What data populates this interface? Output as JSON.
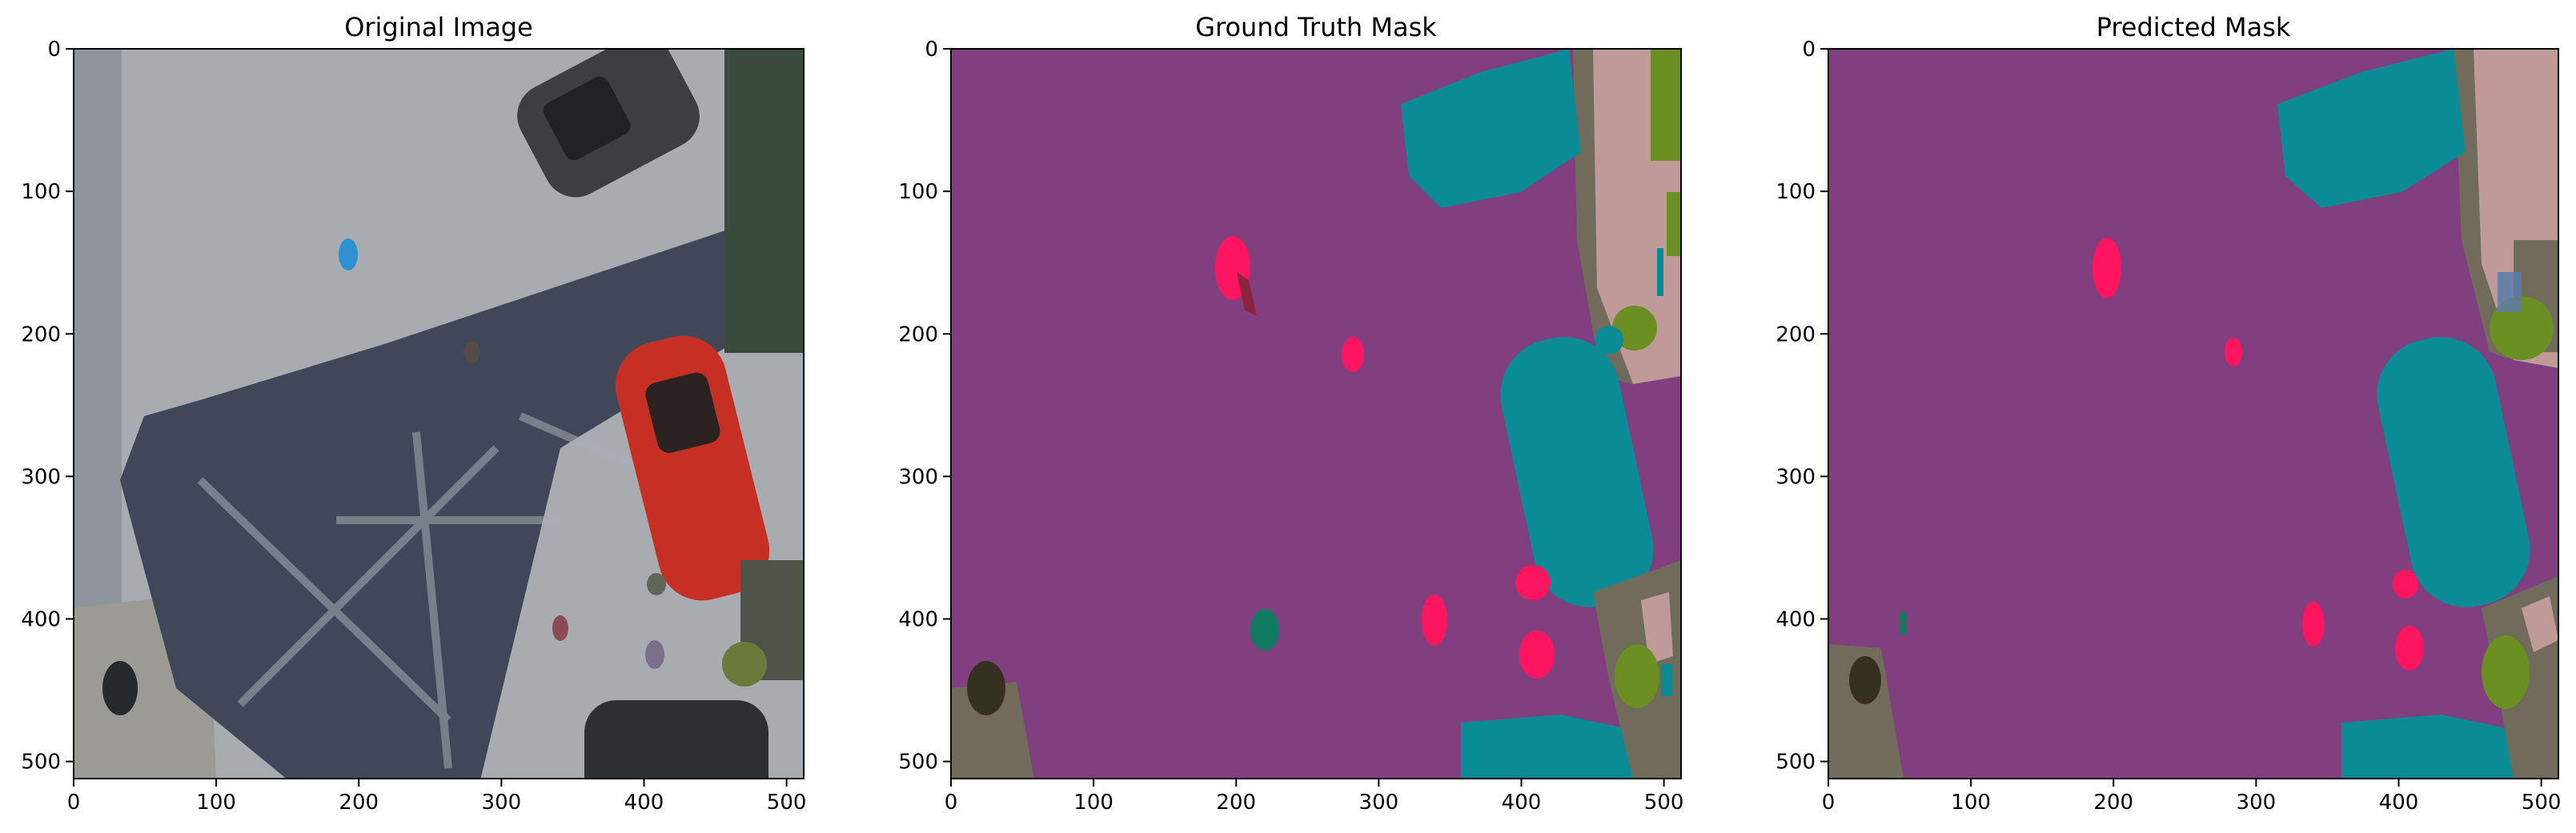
{
  "chart_data": [
    {
      "type": "image",
      "title": "Original Image",
      "xlim": [
        0,
        512
      ],
      "ylim": [
        512,
        0
      ],
      "xticks": [
        0,
        100,
        200,
        300,
        400,
        500
      ],
      "yticks": [
        0,
        100,
        200,
        300,
        400,
        500
      ],
      "xtick_labels": [
        "0",
        "100",
        "200",
        "300",
        "400",
        "500"
      ],
      "ytick_labels": [
        "0",
        "100",
        "200",
        "300",
        "400",
        "500"
      ]
    },
    {
      "type": "image",
      "title": "Ground Truth Mask",
      "xlim": [
        0,
        512
      ],
      "ylim": [
        512,
        0
      ],
      "xticks": [
        0,
        100,
        200,
        300,
        400,
        500
      ],
      "yticks": [
        0,
        100,
        200,
        300,
        400,
        500
      ],
      "xtick_labels": [
        "0",
        "100",
        "200",
        "300",
        "400",
        "500"
      ],
      "ytick_labels": [
        "0",
        "100",
        "200",
        "300",
        "400",
        "500"
      ]
    },
    {
      "type": "image",
      "title": "Predicted Mask",
      "xlim": [
        0,
        512
      ],
      "ylim": [
        512,
        0
      ],
      "xticks": [
        0,
        100,
        200,
        300,
        400,
        500
      ],
      "yticks": [
        0,
        100,
        200,
        300,
        400,
        500
      ],
      "xtick_labels": [
        "0",
        "100",
        "200",
        "300",
        "400",
        "500"
      ],
      "ytick_labels": [
        "0",
        "100",
        "200",
        "300",
        "400",
        "500"
      ]
    }
  ],
  "colors": {
    "road": "#813f7f",
    "car": "#0b8b96",
    "person": "#fe1560",
    "vegetation": "#6c8f23",
    "ground": "#716b5b",
    "pavement": "#c09a99",
    "dark": "#353121",
    "photo_asphalt": "#a7abb0",
    "photo_shadow": "#3d4556"
  }
}
